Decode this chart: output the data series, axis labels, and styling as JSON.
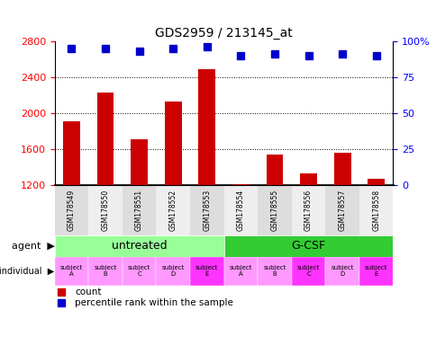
{
  "title": "GDS2959 / 213145_at",
  "samples": [
    "GSM178549",
    "GSM178550",
    "GSM178551",
    "GSM178552",
    "GSM178553",
    "GSM178554",
    "GSM178555",
    "GSM178556",
    "GSM178557",
    "GSM178558"
  ],
  "counts": [
    1910,
    2230,
    1710,
    2130,
    2490,
    1205,
    1540,
    1330,
    1560,
    1270
  ],
  "percentile_ranks": [
    95,
    95,
    93,
    95,
    96,
    90,
    91,
    90,
    91,
    90
  ],
  "ylim_left": [
    1200,
    2800
  ],
  "yticks_left": [
    1200,
    1600,
    2000,
    2400,
    2800
  ],
  "ylim_right": [
    0,
    100
  ],
  "yticks_right": [
    0,
    25,
    50,
    75,
    100
  ],
  "bar_color": "#cc0000",
  "dot_color": "#0000cc",
  "agent_groups": [
    {
      "label": "untreated",
      "start": 0,
      "end": 5,
      "color": "#99ff99"
    },
    {
      "label": "G-CSF",
      "start": 5,
      "end": 10,
      "color": "#33cc33"
    }
  ],
  "individual_labels": [
    "subject\nA",
    "subject\nB",
    "subject\nC",
    "subject\nD",
    "subject\nE",
    "subject\nA",
    "subject\nB",
    "subject\nC",
    "subject\nD",
    "subject\nE"
  ],
  "individual_highlighted": [
    4,
    7,
    9
  ],
  "individual_color_normal": "#ff99ff",
  "individual_color_highlight": "#ff33ff",
  "xticklabel_bg": "#dddddd",
  "legend_count_color": "#cc0000",
  "legend_dot_color": "#0000cc"
}
